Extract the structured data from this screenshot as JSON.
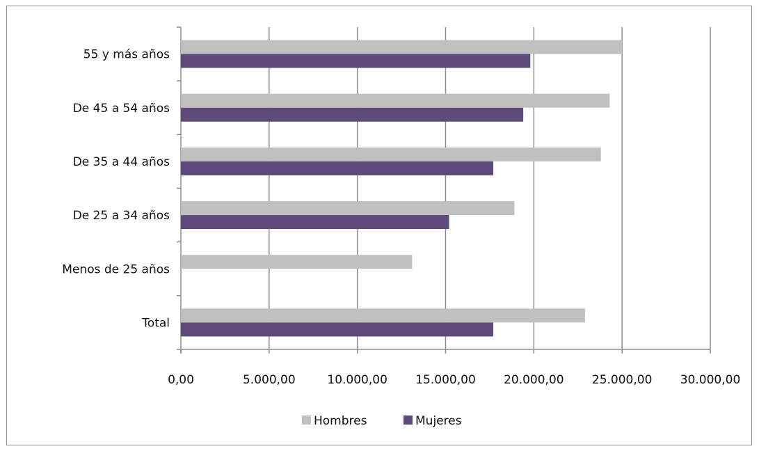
{
  "chart_data": {
    "type": "bar",
    "orientation": "horizontal",
    "categories": [
      "Total",
      "Menos de 25 años",
      "De 25 a 34 años",
      "De 35 a 44 años",
      "De 45 a 54 años",
      "55 y más años"
    ],
    "series": [
      {
        "name": "Hombres",
        "values": [
          22900,
          13100,
          18900,
          23800,
          24300,
          25000
        ]
      },
      {
        "name": "Mujeres",
        "values": [
          17700,
          null,
          15200,
          17700,
          19400,
          19800
        ]
      }
    ],
    "xlim": [
      0,
      30000
    ],
    "xticks": [
      0,
      5000,
      10000,
      15000,
      20000,
      25000,
      30000
    ],
    "xtick_labels": [
      "0,00",
      "5.000,00",
      "10.000,00",
      "15.000,00",
      "20.000,00",
      "25.000,00",
      "30.000,00"
    ],
    "grid": "vertical",
    "legend_position": "bottom",
    "colors": {
      "Hombres": "#c0c0c0",
      "Mujeres": "#5e4a7b",
      "grid": "#8c8c8c",
      "axis": "#8c8c8c"
    }
  }
}
